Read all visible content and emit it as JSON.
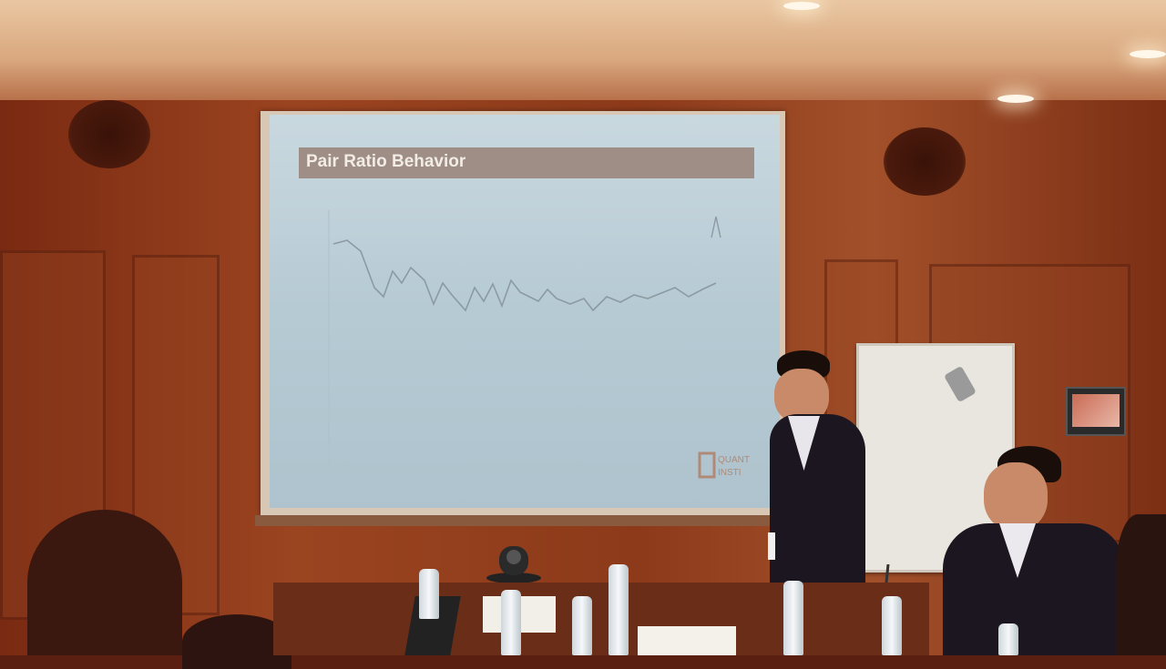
{
  "slide": {
    "title": "Pair Ratio Behavior",
    "logo_text_line1": "QUANT",
    "logo_text_line2": "INSTI"
  },
  "colors": {
    "screen": "#b9ccd5",
    "title_bar": "#9f8e86",
    "wall": "#8c3a1a",
    "chart_line": "#8c9aa2"
  }
}
